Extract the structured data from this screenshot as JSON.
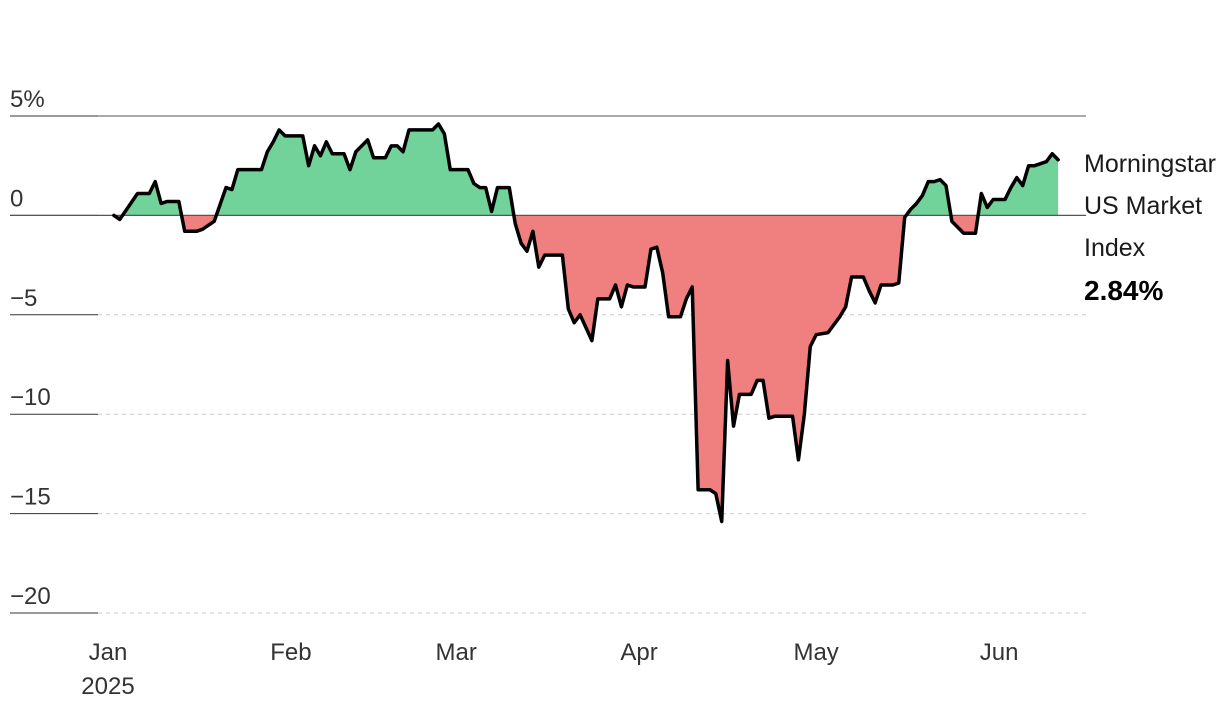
{
  "chart_data": {
    "type": "area",
    "title": "",
    "xlabel": "",
    "ylabel": "",
    "ylim": [
      -20,
      5
    ],
    "xlim": [
      "2025-01-01",
      "2025-06-12"
    ],
    "y_ticks": [
      {
        "value": 5,
        "label": "5%"
      },
      {
        "value": 0,
        "label": "0"
      },
      {
        "value": -5,
        "label": "−5"
      },
      {
        "value": -10,
        "label": "−10"
      },
      {
        "value": -15,
        "label": "−15"
      },
      {
        "value": -20,
        "label": "−20"
      }
    ],
    "x_ticks": [
      {
        "date": "2025-01-01",
        "label": "Jan",
        "sublabel": "2025"
      },
      {
        "date": "2025-02-01",
        "label": "Feb"
      },
      {
        "date": "2025-03-01",
        "label": "Mar"
      },
      {
        "date": "2025-04-01",
        "label": "Apr"
      },
      {
        "date": "2025-05-01",
        "label": "May"
      },
      {
        "date": "2025-06-01",
        "label": "Jun"
      }
    ],
    "grid": true,
    "legend": {
      "series_name_lines": [
        "Morningstar",
        "US Market",
        "Index"
      ],
      "latest_value_label": "2.84%",
      "placement": "right"
    },
    "colors": {
      "positive": "#72d39a",
      "negative": "#f08080",
      "line": "#000000",
      "zero_line": "#555555",
      "grid": "#cccccc"
    },
    "series": [
      {
        "name": "Morningstar US Market Index",
        "points": [
          [
            "2025-01-02",
            0.0
          ],
          [
            "2025-01-03",
            -0.2
          ],
          [
            "2025-01-06",
            1.1
          ],
          [
            "2025-01-07",
            1.1
          ],
          [
            "2025-01-08",
            1.1
          ],
          [
            "2025-01-09",
            1.7
          ],
          [
            "2025-01-10",
            0.6
          ],
          [
            "2025-01-11",
            0.7
          ],
          [
            "2025-01-13",
            0.7
          ],
          [
            "2025-01-14",
            -0.8
          ],
          [
            "2025-01-16",
            -0.8
          ],
          [
            "2025-01-17",
            -0.7
          ],
          [
            "2025-01-18",
            -0.5
          ],
          [
            "2025-01-19",
            -0.3
          ],
          [
            "2025-01-21",
            1.4
          ],
          [
            "2025-01-22",
            1.3
          ],
          [
            "2025-01-23",
            2.3
          ],
          [
            "2025-01-24",
            2.3
          ],
          [
            "2025-01-27",
            2.3
          ],
          [
            "2025-01-28",
            3.2
          ],
          [
            "2025-01-29",
            3.7
          ],
          [
            "2025-01-30",
            4.3
          ],
          [
            "2025-01-31",
            4.0
          ],
          [
            "2025-02-01",
            4.0
          ],
          [
            "2025-02-03",
            4.0
          ],
          [
            "2025-02-04",
            2.5
          ],
          [
            "2025-02-05",
            3.5
          ],
          [
            "2025-02-06",
            3.0
          ],
          [
            "2025-02-07",
            3.7
          ],
          [
            "2025-02-08",
            3.1
          ],
          [
            "2025-02-10",
            3.1
          ],
          [
            "2025-02-11",
            2.3
          ],
          [
            "2025-02-12",
            3.2
          ],
          [
            "2025-02-13",
            3.5
          ],
          [
            "2025-02-14",
            3.8
          ],
          [
            "2025-02-15",
            2.9
          ],
          [
            "2025-02-17",
            2.9
          ],
          [
            "2025-02-18",
            3.5
          ],
          [
            "2025-02-19",
            3.5
          ],
          [
            "2025-02-20",
            3.2
          ],
          [
            "2025-02-21",
            4.3
          ],
          [
            "2025-02-24",
            4.3
          ],
          [
            "2025-02-25",
            4.3
          ],
          [
            "2025-02-26",
            4.6
          ],
          [
            "2025-02-27",
            4.1
          ],
          [
            "2025-02-28",
            2.3
          ],
          [
            "2025-03-01",
            2.3
          ],
          [
            "2025-03-03",
            2.3
          ],
          [
            "2025-03-04",
            1.6
          ],
          [
            "2025-03-05",
            1.4
          ],
          [
            "2025-03-06",
            1.4
          ],
          [
            "2025-03-07",
            0.2
          ],
          [
            "2025-03-08",
            1.4
          ],
          [
            "2025-03-10",
            1.4
          ],
          [
            "2025-03-11",
            -0.4
          ],
          [
            "2025-03-12",
            -1.4
          ],
          [
            "2025-03-13",
            -1.8
          ],
          [
            "2025-03-14",
            -0.8
          ],
          [
            "2025-03-15",
            -2.6
          ],
          [
            "2025-03-16",
            -2.0
          ],
          [
            "2025-03-18",
            -2.0
          ],
          [
            "2025-03-19",
            -2.0
          ],
          [
            "2025-03-20",
            -4.7
          ],
          [
            "2025-03-21",
            -5.4
          ],
          [
            "2025-03-22",
            -5.0
          ],
          [
            "2025-03-24",
            -6.3
          ],
          [
            "2025-03-25",
            -4.2
          ],
          [
            "2025-03-27",
            -4.2
          ],
          [
            "2025-03-28",
            -3.5
          ],
          [
            "2025-03-29",
            -4.6
          ],
          [
            "2025-03-30",
            -3.5
          ],
          [
            "2025-03-31",
            -3.6
          ],
          [
            "2025-04-01",
            -3.6
          ],
          [
            "2025-04-02",
            -3.6
          ],
          [
            "2025-04-03",
            -1.7
          ],
          [
            "2025-04-04",
            -1.6
          ],
          [
            "2025-04-05",
            -2.9
          ],
          [
            "2025-04-06",
            -5.1
          ],
          [
            "2025-04-08",
            -5.1
          ],
          [
            "2025-04-09",
            -4.2
          ],
          [
            "2025-04-10",
            -3.6
          ],
          [
            "2025-04-11",
            -13.8
          ],
          [
            "2025-04-13",
            -13.8
          ],
          [
            "2025-04-14",
            -14.0
          ],
          [
            "2025-04-15",
            -15.4
          ],
          [
            "2025-04-16",
            -7.3
          ],
          [
            "2025-04-17",
            -10.6
          ],
          [
            "2025-04-18",
            -9.0
          ],
          [
            "2025-04-20",
            -9.0
          ],
          [
            "2025-04-21",
            -8.3
          ],
          [
            "2025-04-22",
            -8.3
          ],
          [
            "2025-04-23",
            -10.2
          ],
          [
            "2025-04-24",
            -10.1
          ],
          [
            "2025-04-27",
            -10.1
          ],
          [
            "2025-04-28",
            -12.3
          ],
          [
            "2025-04-29",
            -10.0
          ],
          [
            "2025-04-30",
            -6.6
          ],
          [
            "2025-05-01",
            -6.0
          ],
          [
            "2025-05-03",
            -5.9
          ],
          [
            "2025-05-04",
            -5.5
          ],
          [
            "2025-05-05",
            -5.1
          ],
          [
            "2025-05-06",
            -4.6
          ],
          [
            "2025-05-07",
            -3.1
          ],
          [
            "2025-05-09",
            -3.1
          ],
          [
            "2025-05-10",
            -3.8
          ],
          [
            "2025-05-11",
            -4.4
          ],
          [
            "2025-05-12",
            -3.5
          ],
          [
            "2025-05-14",
            -3.5
          ],
          [
            "2025-05-15",
            -3.4
          ],
          [
            "2025-05-16",
            -0.1
          ],
          [
            "2025-05-17",
            0.3
          ],
          [
            "2025-05-18",
            0.6
          ],
          [
            "2025-05-19",
            1.0
          ],
          [
            "2025-05-20",
            1.7
          ],
          [
            "2025-05-21",
            1.7
          ],
          [
            "2025-05-22",
            1.8
          ],
          [
            "2025-05-23",
            1.5
          ],
          [
            "2025-05-24",
            -0.3
          ],
          [
            "2025-05-26",
            -0.9
          ],
          [
            "2025-05-28",
            -0.9
          ],
          [
            "2025-05-29",
            1.1
          ],
          [
            "2025-05-30",
            0.4
          ],
          [
            "2025-05-31",
            0.8
          ],
          [
            "2025-06-02",
            0.8
          ],
          [
            "2025-06-03",
            1.4
          ],
          [
            "2025-06-04",
            1.9
          ],
          [
            "2025-06-05",
            1.5
          ],
          [
            "2025-06-06",
            2.5
          ],
          [
            "2025-06-07",
            2.5
          ],
          [
            "2025-06-09",
            2.7
          ],
          [
            "2025-06-10",
            3.1
          ],
          [
            "2025-06-11",
            2.8
          ]
        ]
      }
    ]
  }
}
